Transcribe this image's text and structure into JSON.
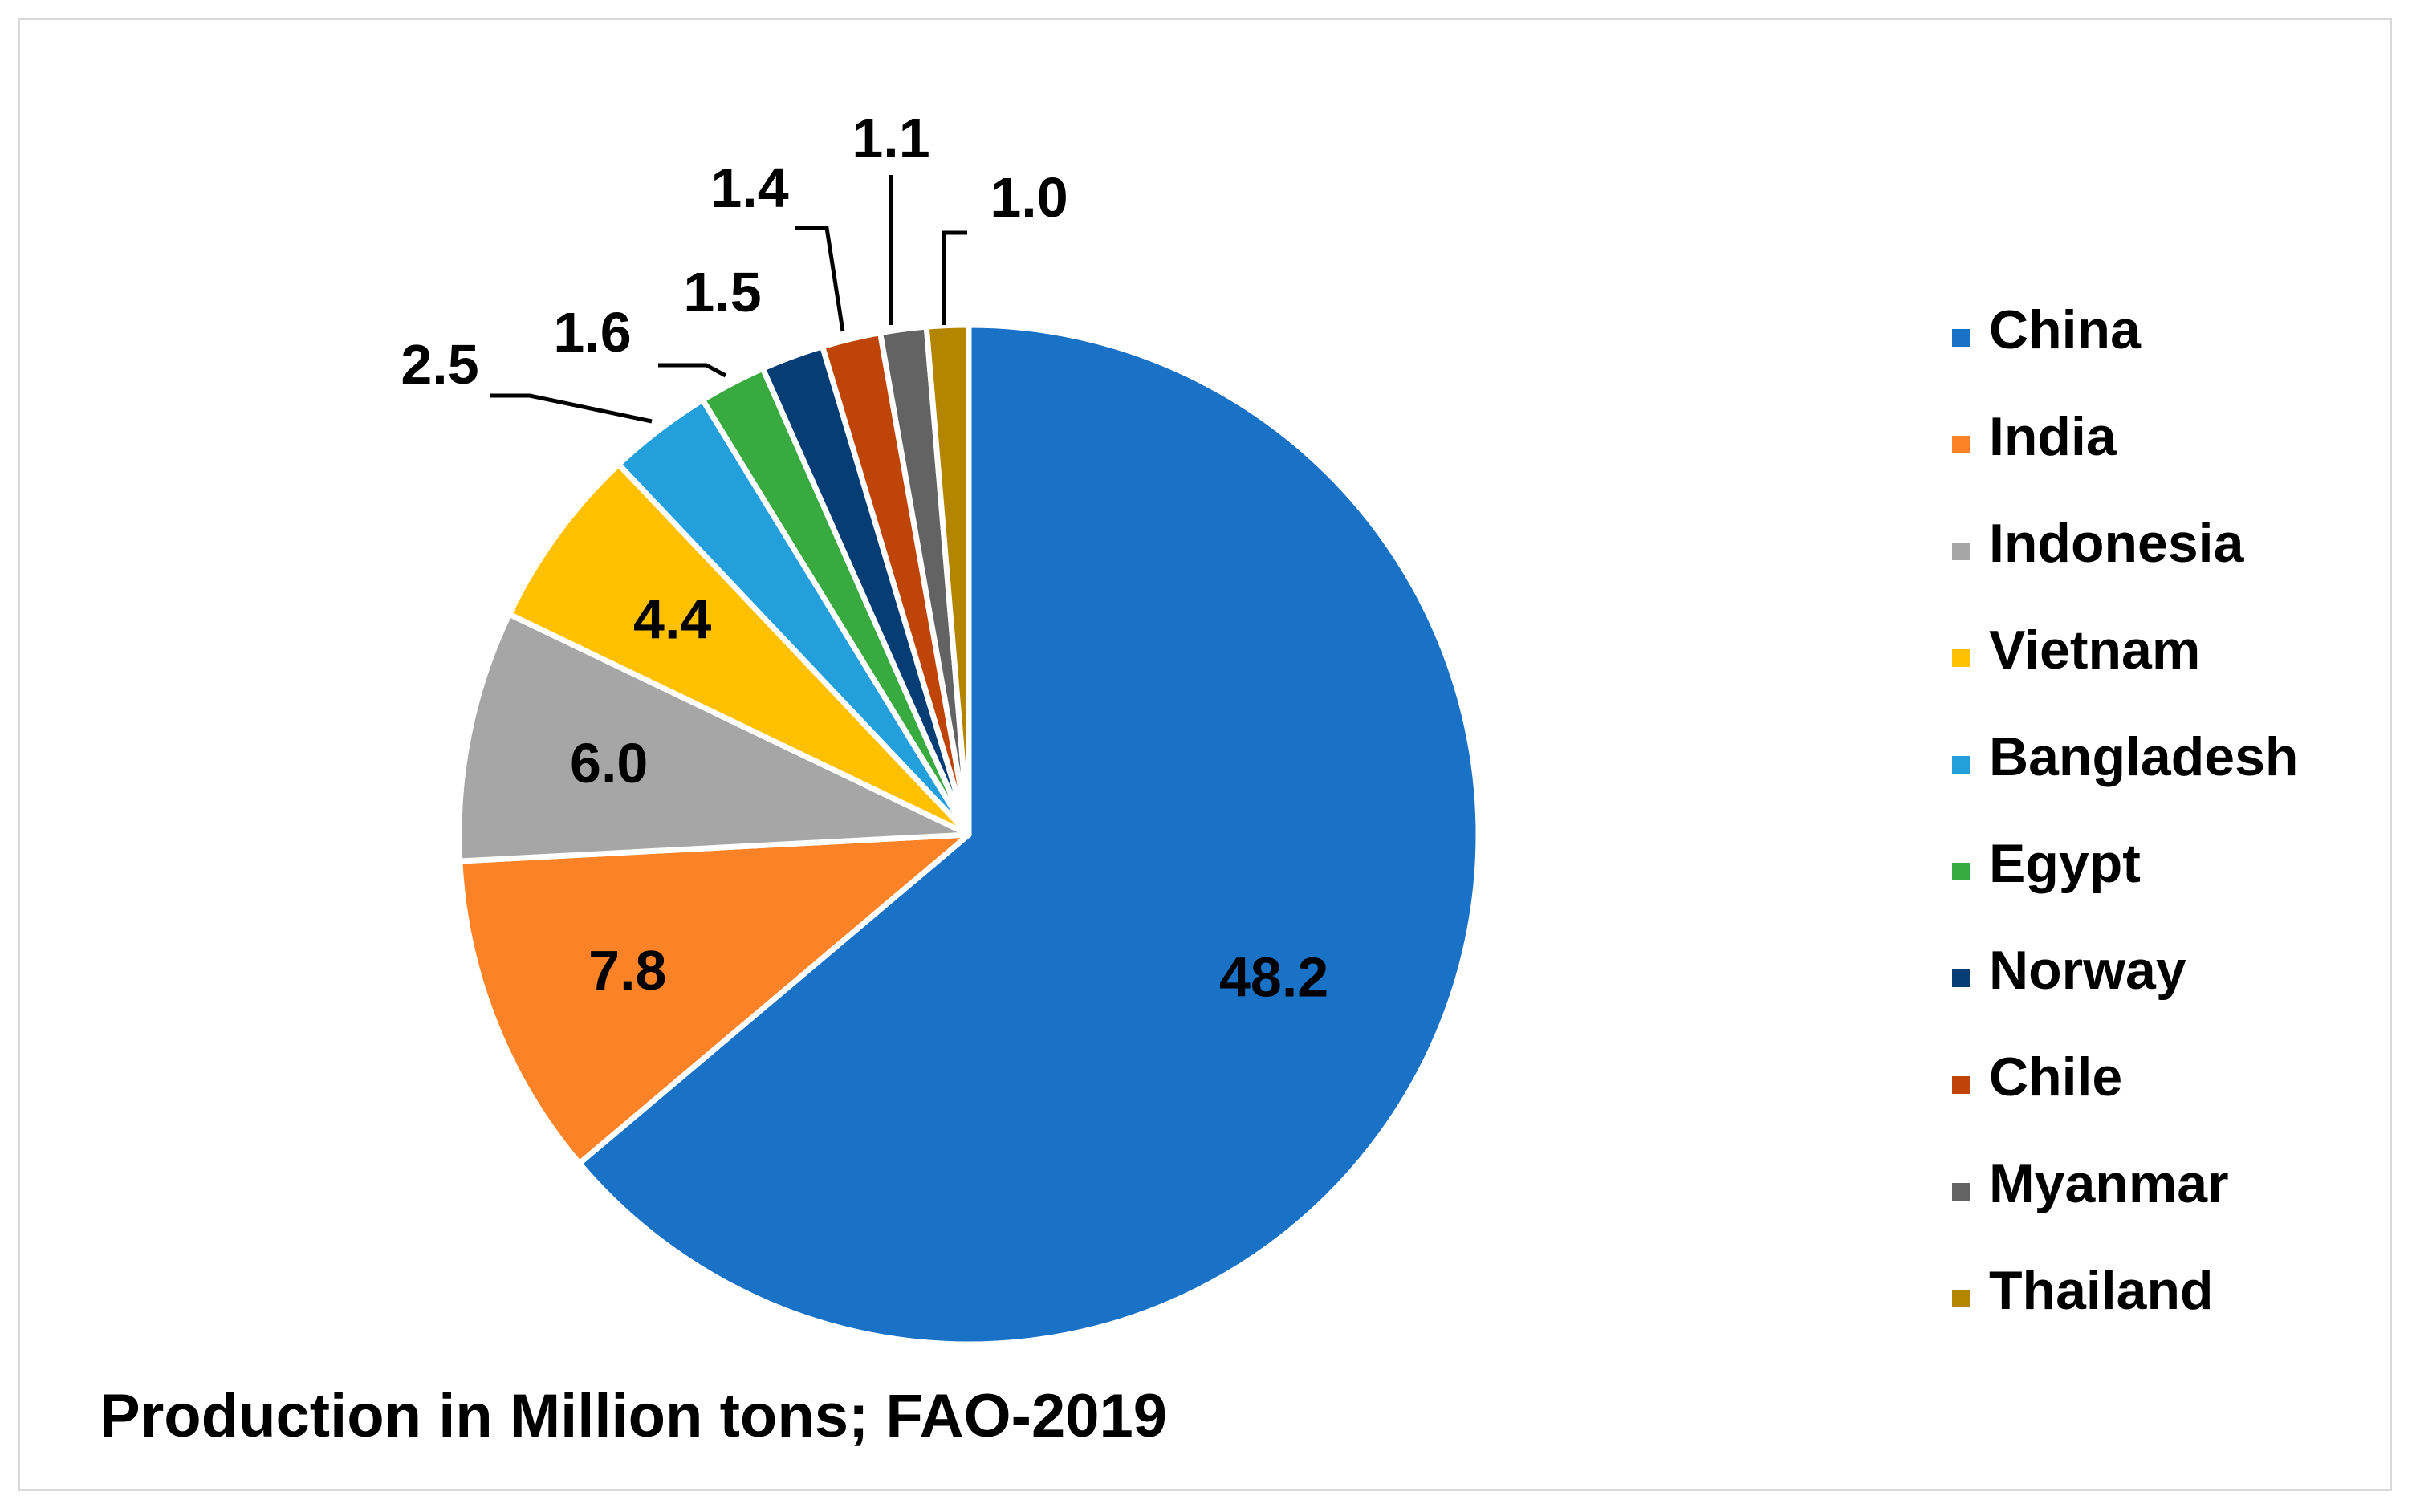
{
  "chart_data": {
    "type": "pie",
    "title": "",
    "subtitle": "Production in Million tons; FAO-2019",
    "legend_position": "right",
    "series": [
      {
        "name": "Production in Million tons",
        "categories": [
          "China",
          "India",
          "Indonesia",
          "Vietnam",
          "Bangladesh",
          "Egypt",
          "Norway",
          "Chile",
          "Myanmar",
          "Thailand"
        ],
        "values": [
          48.2,
          7.8,
          6.0,
          4.4,
          2.5,
          1.6,
          1.5,
          1.4,
          1.1,
          1.0
        ],
        "labels": [
          "48.2",
          "7.8",
          "6.0",
          "4.4",
          "2.5",
          "1.6",
          "1.5",
          "1.4",
          "1.1",
          "1.0"
        ],
        "colors": [
          "#1a72c7",
          "#fb8226",
          "#a6a6a6",
          "#ffc000",
          "#23a0dc",
          "#38aa3f",
          "#073d75",
          "#bf4407",
          "#636363",
          "#b38500"
        ]
      }
    ]
  }
}
